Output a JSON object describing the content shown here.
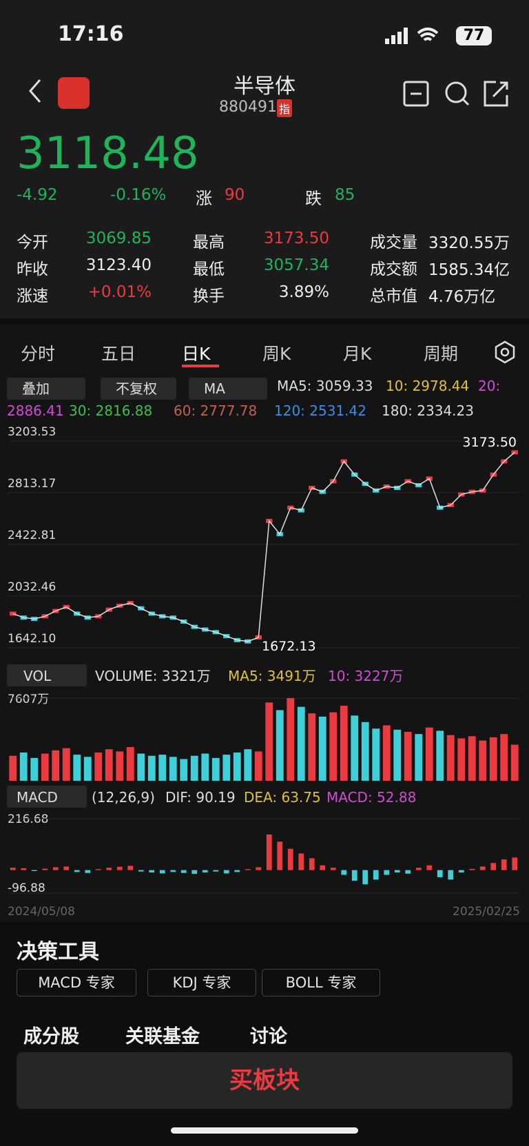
{
  "status": {
    "time": "17:16",
    "battery": "77"
  },
  "header": {
    "title": "半导体",
    "code": "880491",
    "badge": "指"
  },
  "quote": {
    "price": "3118.48",
    "change": "-4.92",
    "percent": "-0.16%",
    "up_label": "涨",
    "up": "90",
    "down_label": "跌",
    "down": "85"
  },
  "stats": [
    [
      [
        "今开",
        "3069.85"
      ],
      [
        "最高",
        "3173.50"
      ],
      [
        "成交量",
        "3320.55万"
      ]
    ],
    [
      [
        "昨收",
        "3123.40"
      ],
      [
        "最低",
        "3057.34"
      ],
      [
        "成交额",
        "1585.34亿"
      ]
    ],
    [
      [
        "涨速",
        "+0.01%"
      ],
      [
        "换手",
        "3.89%"
      ],
      [
        "总市值",
        "4.76万亿"
      ]
    ]
  ],
  "tabs": [
    "分时",
    "五日",
    "日K",
    "周K",
    "月K",
    "周期"
  ],
  "selectors": [
    "叠加",
    "不复权",
    "MA"
  ],
  "ma_labels": [
    "MA5: 3059.33",
    "10: 2978.44",
    "20:",
    "2886.41",
    "30: 2816.88",
    "60: 2777.78",
    "120: 2531.42",
    "180: 2334.23"
  ],
  "price_chart": {
    "ylim": [
      1642.1,
      3203.53
    ],
    "yticks": [
      3203.53,
      2813.17,
      2422.81,
      2032.46,
      {
        "value": 1642.1,
        "label": "1642.10"
      }
    ],
    "high_label": "3173.50",
    "low_label": "1672.13",
    "values": [
      1900,
      1870,
      1860,
      1880,
      1920,
      1950,
      1900,
      1870,
      1880,
      1930,
      1960,
      1980,
      1940,
      1900,
      1880,
      1870,
      1840,
      1800,
      1780,
      1760,
      1730,
      1700,
      1690,
      1720,
      2600,
      2500,
      2700,
      2680,
      2850,
      2820,
      2900,
      3050,
      2950,
      2880,
      2830,
      2860,
      2850,
      2900,
      2870,
      2920,
      2700,
      2720,
      2800,
      2820,
      2830,
      2950,
      3050,
      3118.48
    ],
    "x_labels": [
      "2024/05/08",
      "2025/02/25"
    ]
  },
  "volume_chart": {
    "name": "VOL",
    "legend": [
      "VOLUME: 3321万",
      "MA5: 3491万",
      "10: 3227万"
    ],
    "ylim": [
      0,
      7607
    ],
    "yticks": [
      {
        "value": 7607,
        "label": "7607万"
      }
    ],
    "values": [
      2300,
      2600,
      2100,
      2500,
      2800,
      3000,
      2400,
      2200,
      2600,
      2900,
      2700,
      3100,
      2500,
      2300,
      2400,
      2200,
      2000,
      2300,
      2500,
      2100,
      2400,
      2600,
      2900,
      2700,
      7200,
      6500,
      7600,
      6800,
      6200,
      5900,
      6300,
      6900,
      6000,
      5400,
      4800,
      5100,
      4700,
      4500,
      4300,
      4900,
      4600,
      4200,
      3900,
      4100,
      3700,
      4000,
      4300,
      3321
    ]
  },
  "macd_chart": {
    "name": "MACD",
    "params": "(12,26,9)",
    "legend": [
      "DIF: 90.19",
      "DEA: 63.75",
      "MACD: 52.88"
    ],
    "ylim": [
      -96.88,
      216.68
    ],
    "yticks": [
      216.68,
      -96.88
    ],
    "values": [
      10,
      8,
      -4,
      6,
      12,
      15,
      -8,
      -12,
      4,
      10,
      14,
      18,
      -6,
      -10,
      -14,
      -8,
      -12,
      -16,
      -10,
      -6,
      -14,
      -8,
      4,
      12,
      150,
      120,
      90,
      70,
      50,
      20,
      10,
      -20,
      -45,
      -60,
      -40,
      -20,
      -10,
      -15,
      10,
      20,
      -30,
      -40,
      -10,
      5,
      15,
      30,
      45,
      52.88
    ]
  },
  "tools": {
    "title": "决策工具",
    "buttons": [
      "MACD 专家",
      "KDJ 专家",
      "BOLL 专家"
    ]
  },
  "bottom_tabs": [
    "成分股",
    "关联基金",
    "讨论"
  ],
  "buy": "买板块"
}
